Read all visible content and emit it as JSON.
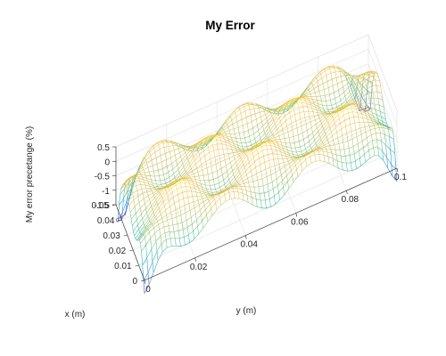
{
  "chart_data": {
    "type": "surface",
    "title": "My Error",
    "xlabel": "x (m)",
    "ylabel": "y (m)",
    "zlabel": "My error precetange (%)",
    "xlim": [
      0,
      0.05
    ],
    "ylim": [
      0,
      0.1
    ],
    "zlim": [
      -1.5,
      0.5
    ],
    "x_ticks": [
      "0",
      "0.01",
      "0.02",
      "0.03",
      "0.04",
      "0.05"
    ],
    "y_ticks": [
      "0",
      "0.02",
      "0.04",
      "0.06",
      "0.08",
      "0.1"
    ],
    "z_ticks": [
      "0.5",
      "0",
      "-0.5",
      "-1",
      "-1.5"
    ],
    "grid": true,
    "style": "mesh",
    "colormap": "parula",
    "features": {
      "x_waves": 1.5,
      "y_waves": 3,
      "surface_amplitude": 0.45,
      "corner_dip_min": -2.0
    }
  }
}
